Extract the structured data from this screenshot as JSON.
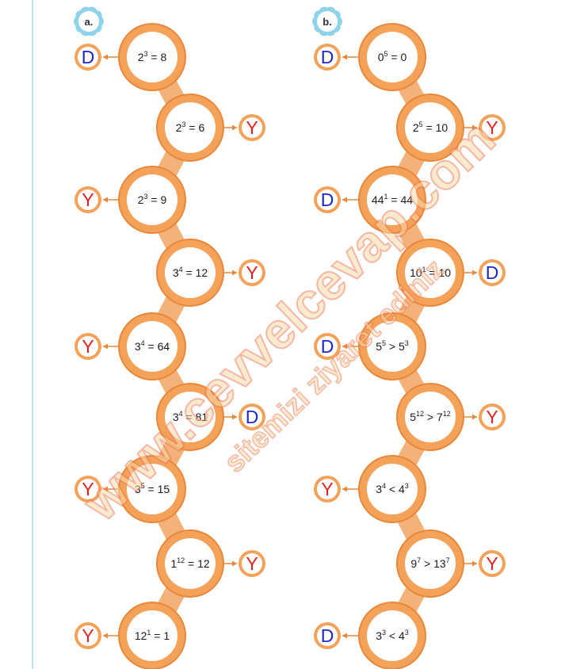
{
  "colors": {
    "ring": "#f4a25a",
    "ring_dark": "#e8873a",
    "connector": "#f2b27a",
    "true_letter": "#1f27c9",
    "false_letter": "#e02222",
    "badge": "#8fd3ea",
    "watermark_fill": "#f7d9a8",
    "watermark_stroke": "#ee7d5a"
  },
  "columns": [
    {
      "badge": "a.",
      "items": [
        {
          "base": "2",
          "exp": "3",
          "rest": " = 8",
          "answer": "D",
          "side": "left"
        },
        {
          "base": "2",
          "exp": "3",
          "rest": " = 6",
          "answer": "Y",
          "side": "right"
        },
        {
          "base": "2",
          "exp": "3",
          "rest": " = 9",
          "answer": "Y",
          "side": "left"
        },
        {
          "base": "3",
          "exp": "4",
          "rest": " = 12",
          "answer": "Y",
          "side": "right"
        },
        {
          "base": "3",
          "exp": "4",
          "rest": " = 64",
          "answer": "Y",
          "side": "left"
        },
        {
          "base": "3",
          "exp": "4",
          "rest": " = 81",
          "answer": "D",
          "side": "right"
        },
        {
          "base": "3",
          "exp": "5",
          "rest": " = 15",
          "answer": "Y",
          "side": "left"
        },
        {
          "base": "1",
          "exp": "12",
          "rest": " = 12",
          "answer": "Y",
          "side": "right"
        },
        {
          "base": "12",
          "exp": "1",
          "rest": " = 1",
          "answer": "Y",
          "side": "left"
        }
      ]
    },
    {
      "badge": "b.",
      "items": [
        {
          "base": "0",
          "exp": "5",
          "rest": " = 0",
          "answer": "D",
          "side": "left"
        },
        {
          "base": "2",
          "exp": "5",
          "rest": " = 10",
          "answer": "Y",
          "side": "right"
        },
        {
          "base": "44",
          "exp": "1",
          "rest": " = 44",
          "answer": "D",
          "side": "left"
        },
        {
          "base": "10",
          "exp": "1",
          "rest": " = 10",
          "answer": "D",
          "side": "right"
        },
        {
          "base": "5",
          "exp": "5",
          "rest": " > 5",
          "exp2": "3",
          "answer": "D",
          "side": "left"
        },
        {
          "base": "5",
          "exp": "12",
          "rest": " > 7",
          "exp2": "12",
          "answer": "Y",
          "side": "right"
        },
        {
          "base": "3",
          "exp": "4",
          "rest": " < 4",
          "exp2": "3",
          "answer": "Y",
          "side": "left"
        },
        {
          "base": "9",
          "exp": "7",
          "rest": " > 13",
          "exp2": "7",
          "answer": "Y",
          "side": "right"
        },
        {
          "base": "3",
          "exp": "3",
          "rest": " < 4",
          "exp2": "3",
          "answer": "D",
          "side": "left"
        }
      ]
    }
  ],
  "watermark": {
    "main": "www.cevvelcevap.com",
    "sub": "sitemizi ziyaret ediniz"
  }
}
